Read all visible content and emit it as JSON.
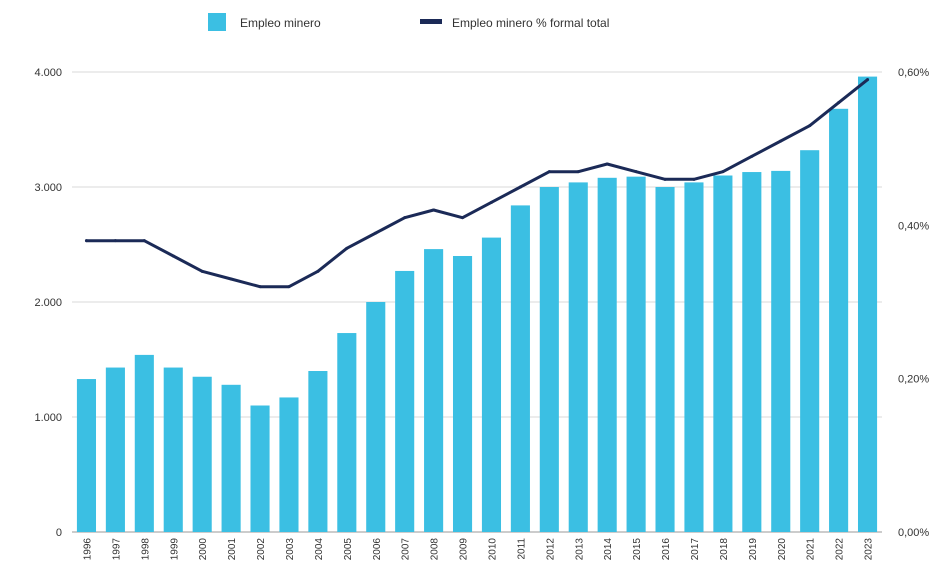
{
  "chart_data": {
    "type": "bar",
    "categories": [
      "1996",
      "1997",
      "1998",
      "1999",
      "2000",
      "2001",
      "2002",
      "2003",
      "2004",
      "2005",
      "2006",
      "2007",
      "2008",
      "2009",
      "2010",
      "2011",
      "2012",
      "2013",
      "2014",
      "2015",
      "2016",
      "2017",
      "2018",
      "2019",
      "2020",
      "2021",
      "2022",
      "2023"
    ],
    "series": [
      {
        "name": "Empleo minero",
        "type": "bar",
        "axis": "left",
        "color": "#3bbfe3",
        "values": [
          1330,
          1430,
          1540,
          1430,
          1350,
          1280,
          1100,
          1170,
          1400,
          1730,
          2000,
          2270,
          2460,
          2400,
          2560,
          2840,
          3000,
          3040,
          3080,
          3090,
          3000,
          3040,
          3100,
          3130,
          3140,
          3320,
          3680,
          3960
        ]
      },
      {
        "name": "Empleo minero % formal total",
        "type": "line",
        "axis": "right",
        "color": "#1b2a57",
        "values": [
          0.38,
          0.38,
          0.38,
          0.36,
          0.34,
          0.33,
          0.32,
          0.32,
          0.34,
          0.37,
          0.39,
          0.41,
          0.42,
          0.41,
          0.43,
          0.45,
          0.47,
          0.47,
          0.48,
          0.47,
          0.46,
          0.46,
          0.47,
          0.49,
          0.51,
          0.53,
          0.56,
          0.59
        ]
      }
    ],
    "y_left": {
      "range": [
        0,
        4000
      ],
      "ticks": [
        0,
        1000,
        2000,
        3000,
        4000
      ],
      "tick_labels": [
        "0",
        "1.000",
        "2.000",
        "3.000",
        "4.000"
      ]
    },
    "y_right": {
      "range": [
        0,
        0.6
      ],
      "ticks": [
        0,
        0.2,
        0.4,
        0.6
      ],
      "tick_labels": [
        "0,00%",
        "0,20%",
        "0,40%",
        "0,60%"
      ]
    },
    "title": "",
    "xlabel": "",
    "ylabel": "",
    "grid": true,
    "legend_placement": "top-center"
  }
}
